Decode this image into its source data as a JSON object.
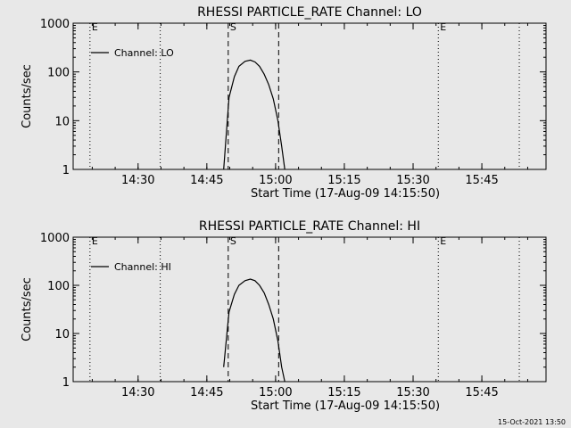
{
  "footer": {
    "timestamp": "15-Oct-2021 13:50"
  },
  "chart_data": [
    {
      "type": "line",
      "title": "RHESSI PARTICLE_RATE Channel: LO",
      "xlabel": "Start Time (17-Aug-09 14:15:50)",
      "ylabel": "Counts/sec",
      "yscale": "log",
      "ylim": [
        1,
        1000
      ],
      "y_ticks": [
        1,
        10,
        100,
        1000
      ],
      "xlim": [
        "14:15:50",
        "15:59:00"
      ],
      "x_ticks": [
        "14:30",
        "14:45",
        "15:00",
        "15:15",
        "15:30",
        "15:45"
      ],
      "legend": "top-left",
      "series": [
        {
          "name": "Channel: LO",
          "color": "#000000",
          "x": [
            "14:48:40",
            "14:49:50",
            "14:51:00",
            "14:52:00",
            "14:53:20",
            "14:54:30",
            "14:55:30",
            "14:56:30",
            "14:57:30",
            "14:58:30",
            "14:59:30",
            "15:00:30",
            "15:01:20",
            "15:02:00"
          ],
          "y": [
            1,
            30,
            80,
            130,
            165,
            175,
            160,
            130,
            90,
            55,
            28,
            10,
            3,
            1
          ]
        }
      ],
      "markers": [
        {
          "label": "E",
          "time": "14:19:30",
          "style": "dotted"
        },
        {
          "label": "S",
          "time": "14:49:40",
          "style": "dashed"
        },
        {
          "label": "",
          "time": "14:34:50",
          "style": "dotted"
        },
        {
          "label": "",
          "time": "15:00:40",
          "style": "dashed"
        },
        {
          "label": "E",
          "time": "15:35:30",
          "style": "dotted"
        },
        {
          "label": "",
          "time": "15:53:10",
          "style": "dotted"
        }
      ]
    },
    {
      "type": "line",
      "title": "RHESSI PARTICLE_RATE Channel: HI",
      "xlabel": "Start Time (17-Aug-09 14:15:50)",
      "ylabel": "Counts/sec",
      "yscale": "log",
      "ylim": [
        1,
        1000
      ],
      "y_ticks": [
        1,
        10,
        100,
        1000
      ],
      "xlim": [
        "14:15:50",
        "15:59:00"
      ],
      "x_ticks": [
        "14:30",
        "14:45",
        "15:00",
        "15:15",
        "15:30",
        "15:45"
      ],
      "legend": "top-left",
      "series": [
        {
          "name": "Channel: HI",
          "color": "#000000",
          "x": [
            "14:48:40",
            "14:49:50",
            "14:51:00",
            "14:52:00",
            "14:53:20",
            "14:54:30",
            "14:55:30",
            "14:56:30",
            "14:57:30",
            "14:58:30",
            "14:59:30",
            "15:00:30",
            "15:01:20",
            "15:02:00"
          ],
          "y": [
            2,
            28,
            65,
            100,
            125,
            135,
            125,
            100,
            70,
            40,
            20,
            7,
            2,
            1
          ]
        }
      ],
      "markers": [
        {
          "label": "E",
          "time": "14:19:30",
          "style": "dotted"
        },
        {
          "label": "S",
          "time": "14:49:40",
          "style": "dashed"
        },
        {
          "label": "",
          "time": "14:34:50",
          "style": "dotted"
        },
        {
          "label": "",
          "time": "15:00:40",
          "style": "dashed"
        },
        {
          "label": "E",
          "time": "15:35:30",
          "style": "dotted"
        },
        {
          "label": "",
          "time": "15:53:10",
          "style": "dotted"
        }
      ]
    }
  ]
}
